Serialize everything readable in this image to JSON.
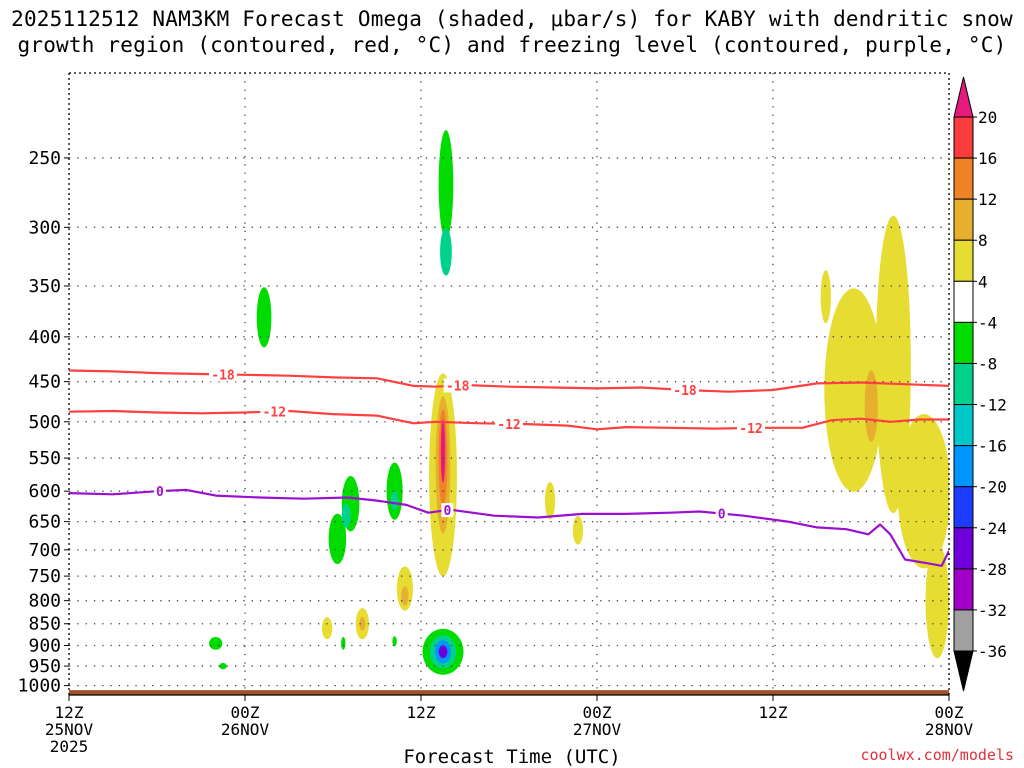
{
  "header": {
    "title_line1": "2025112512 NAM3KM Forecast Omega (shaded, μbar/s) for KABY with dendritic snow",
    "title_line2": "growth region (contoured, red, °C) and freezing level (contoured, purple, °C)"
  },
  "footer": {
    "credit": "coolwx.com/models"
  },
  "chart_data": {
    "type": "time-height-contour",
    "xlabel": "Forecast Time (UTC)",
    "ylabel": "",
    "x_range_hours": [
      0,
      60
    ],
    "x_ticks": [
      {
        "hour": 0,
        "lines": [
          "12Z",
          "25NOV",
          "2025"
        ]
      },
      {
        "hour": 12,
        "lines": [
          "00Z",
          "26NOV"
        ]
      },
      {
        "hour": 24,
        "lines": [
          "12Z"
        ]
      },
      {
        "hour": 36,
        "lines": [
          "00Z",
          "27NOV"
        ]
      },
      {
        "hour": 48,
        "lines": [
          "12Z"
        ]
      },
      {
        "hour": 60,
        "lines": [
          "00Z",
          "28NOV"
        ]
      }
    ],
    "y_range_hpa": [
      1025,
      200
    ],
    "y_ticks": [
      250,
      300,
      350,
      400,
      450,
      500,
      550,
      600,
      650,
      700,
      750,
      800,
      850,
      900,
      950,
      1000
    ],
    "colorbar": {
      "unit": "μbar/s",
      "bounds": [
        -36,
        -32,
        -28,
        -24,
        -20,
        -16,
        -12,
        -8,
        -4,
        4,
        8,
        12,
        16,
        20
      ],
      "tick_labels": [
        "20",
        "16",
        "12",
        "8",
        "4",
        "-4",
        "-8",
        "-12",
        "-16",
        "-20",
        "-24",
        "-28",
        "-32",
        "-36"
      ],
      "colors_low_to_high": [
        "#000000",
        "#a0a0a0",
        "#a000c8",
        "#6e00dc",
        "#1e3cff",
        "#0096ff",
        "#00c8c8",
        "#00d28c",
        "#00dc00",
        "#ffffff",
        "#e6dc32",
        "#e6af2d",
        "#f08228",
        "#fa3c3c",
        "#e6197d"
      ]
    },
    "contours": [
      {
        "name": "-18",
        "color": "#ff4040",
        "label": "-18",
        "hours": [
          0,
          3,
          6,
          9,
          12,
          15,
          18,
          21,
          23.5,
          25,
          27,
          30,
          33,
          36,
          39,
          42,
          45,
          48,
          51,
          54,
          57,
          60
        ],
        "hpa": [
          437,
          438,
          440,
          441,
          442,
          443,
          445,
          446,
          455,
          456,
          454,
          456,
          457,
          458,
          457,
          460,
          462,
          460,
          452,
          451,
          453,
          455
        ],
        "label_hours": [
          10.5,
          26.5,
          42
        ]
      },
      {
        "name": "-12",
        "color": "#ff4040",
        "label": "-12",
        "hours": [
          0,
          3,
          6,
          9,
          12,
          15,
          18,
          21,
          23.5,
          25,
          28,
          31,
          34,
          36,
          38,
          41,
          44,
          47,
          50,
          52,
          54,
          56,
          58,
          60
        ],
        "hpa": [
          487,
          486,
          488,
          489,
          488,
          486,
          490,
          492,
          502,
          500,
          502,
          503,
          505,
          510,
          507,
          508,
          509,
          508,
          508,
          498,
          496,
          500,
          497,
          497
        ],
        "label_hours": [
          14,
          30,
          46.5
        ]
      },
      {
        "name": "0",
        "color": "#9b10d0",
        "label": "0",
        "hours": [
          0,
          3,
          6,
          8,
          10,
          13,
          16,
          19,
          21,
          23,
          24.5,
          26,
          29,
          32,
          35,
          38,
          41,
          43,
          46,
          49,
          51,
          53,
          54.5,
          55.3,
          56,
          57,
          58.5,
          59.5,
          60
        ],
        "hpa": [
          603,
          605,
          600,
          598,
          607,
          610,
          612,
          610,
          615,
          622,
          635,
          630,
          640,
          643,
          637,
          637,
          635,
          633,
          640,
          650,
          660,
          663,
          672,
          655,
          672,
          718,
          725,
          730,
          702
        ],
        "label_hours": [
          6.2,
          25.8,
          44.5
        ]
      }
    ],
    "shaded_regions": [
      {
        "hour_c": 13.3,
        "hpa_c": 380,
        "hour_hw": 0.5,
        "hpa_hw": 30,
        "omega": -6
      },
      {
        "hour_c": 25.7,
        "hpa_c": 268,
        "hour_hw": 0.5,
        "hpa_hw": 38,
        "omega": -6
      },
      {
        "hour_c": 25.7,
        "hpa_c": 320,
        "hour_hw": 0.4,
        "hpa_hw": 20,
        "omega": -10
      },
      {
        "hour_c": 19.2,
        "hpa_c": 620,
        "hour_hw": 0.6,
        "hpa_hw": 45,
        "omega": -6
      },
      {
        "hour_c": 18.3,
        "hpa_c": 680,
        "hour_hw": 0.6,
        "hpa_hw": 45,
        "omega": -6
      },
      {
        "hour_c": 18.9,
        "hpa_c": 640,
        "hour_hw": 0.3,
        "hpa_hw": 20,
        "omega": -10
      },
      {
        "hour_c": 22.2,
        "hpa_c": 600,
        "hour_hw": 0.55,
        "hpa_hw": 45,
        "omega": -6
      },
      {
        "hour_c": 22.2,
        "hpa_c": 615,
        "hour_hw": 0.25,
        "hpa_hw": 15,
        "omega": -10
      },
      {
        "hour_c": 10.0,
        "hpa_c": 895,
        "hour_hw": 0.45,
        "hpa_hw": 15,
        "omega": -6
      },
      {
        "hour_c": 10.5,
        "hpa_c": 950,
        "hour_hw": 0.25,
        "hpa_hw": 8,
        "omega": -6
      },
      {
        "hour_c": 18.7,
        "hpa_c": 895,
        "hour_hw": 0.15,
        "hpa_hw": 15,
        "omega": -6
      },
      {
        "hour_c": 22.2,
        "hpa_c": 890,
        "hour_hw": 0.15,
        "hpa_hw": 12,
        "omega": -6
      },
      {
        "hour_c": 25.5,
        "hpa_c": 915,
        "hour_hw": 1.4,
        "hpa_hw": 55,
        "omega": -6
      },
      {
        "hour_c": 25.5,
        "hpa_c": 915,
        "hour_hw": 0.9,
        "hpa_hw": 40,
        "omega": -12
      },
      {
        "hour_c": 25.5,
        "hpa_c": 915,
        "hour_hw": 0.55,
        "hpa_hw": 28,
        "omega": -18
      },
      {
        "hour_c": 25.5,
        "hpa_c": 915,
        "hour_hw": 0.3,
        "hpa_hw": 15,
        "omega": -26
      },
      {
        "hour_c": 25.5,
        "hpa_c": 575,
        "hour_hw": 0.95,
        "hpa_hw": 150,
        "omega": 6
      },
      {
        "hour_c": 25.5,
        "hpa_c": 560,
        "hour_hw": 0.5,
        "hpa_hw": 100,
        "omega": 10
      },
      {
        "hour_c": 25.5,
        "hpa_c": 550,
        "hour_hw": 0.3,
        "hpa_hw": 70,
        "omega": 14
      },
      {
        "hour_c": 25.5,
        "hpa_c": 540,
        "hour_hw": 0.15,
        "hpa_hw": 45,
        "omega": 22
      },
      {
        "hour_c": 22.9,
        "hpa_c": 775,
        "hour_hw": 0.55,
        "hpa_hw": 45,
        "omega": 6
      },
      {
        "hour_c": 22.9,
        "hpa_c": 790,
        "hour_hw": 0.25,
        "hpa_hw": 20,
        "omega": 10
      },
      {
        "hour_c": 17.6,
        "hpa_c": 860,
        "hour_hw": 0.35,
        "hpa_hw": 25,
        "omega": 6
      },
      {
        "hour_c": 20.0,
        "hpa_c": 850,
        "hour_hw": 0.45,
        "hpa_hw": 35,
        "omega": 6
      },
      {
        "hour_c": 20.0,
        "hpa_c": 850,
        "hour_hw": 0.2,
        "hpa_hw": 15,
        "omega": 10
      },
      {
        "hour_c": 32.8,
        "hpa_c": 615,
        "hour_hw": 0.35,
        "hpa_hw": 30,
        "omega": 6
      },
      {
        "hour_c": 34.7,
        "hpa_c": 665,
        "hour_hw": 0.35,
        "hpa_hw": 25,
        "omega": 6
      },
      {
        "hour_c": 51.6,
        "hpa_c": 360,
        "hour_hw": 0.35,
        "hpa_hw": 25,
        "omega": 6
      },
      {
        "hour_c": 53.5,
        "hpa_c": 460,
        "hour_hw": 2.0,
        "hpa_hw": 120,
        "omega": 6
      },
      {
        "hour_c": 56.2,
        "hpa_c": 430,
        "hour_hw": 1.2,
        "hpa_hw": 160,
        "omega": 6
      },
      {
        "hour_c": 58.3,
        "hpa_c": 600,
        "hour_hw": 1.8,
        "hpa_hw": 120,
        "omega": 6
      },
      {
        "hour_c": 59.2,
        "hpa_c": 800,
        "hour_hw": 0.8,
        "hpa_hw": 120,
        "omega": 6
      },
      {
        "hour_c": 54.7,
        "hpa_c": 480,
        "hour_hw": 0.45,
        "hpa_hw": 45,
        "omega": 10
      }
    ],
    "terrain": {
      "color": "#a0522d",
      "top_hpa": 1012
    }
  }
}
